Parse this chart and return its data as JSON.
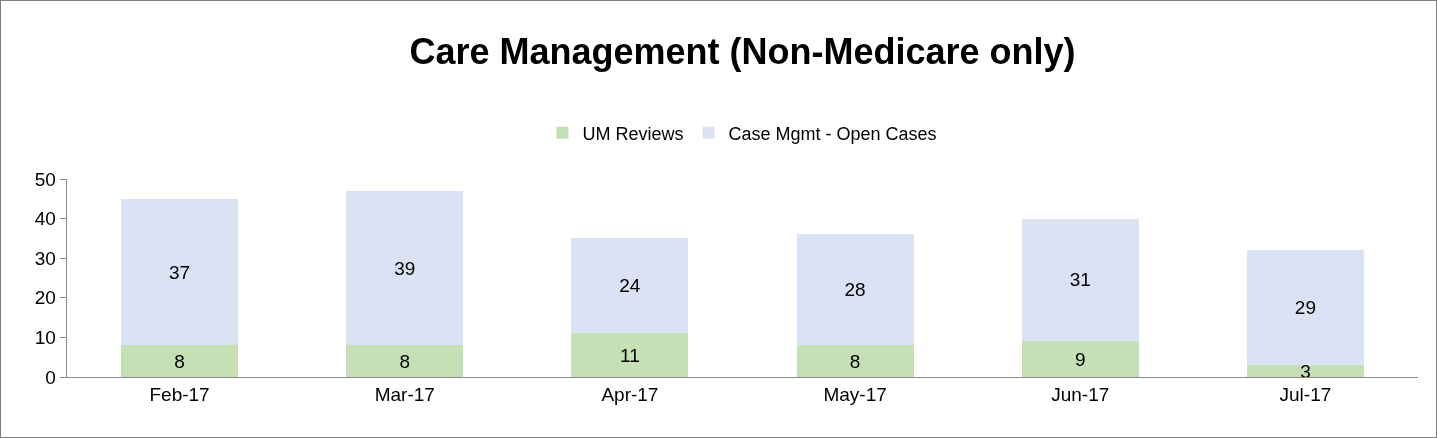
{
  "chart_data": {
    "type": "bar",
    "title": "Care Management (Non-Medicare only)",
    "categories": [
      "Feb-17",
      "Mar-17",
      "Apr-17",
      "May-17",
      "Jun-17",
      "Jul-17"
    ],
    "series": [
      {
        "name": "UM Reviews",
        "color": "#c5e0b4",
        "values": [
          8,
          8,
          11,
          8,
          9,
          3
        ]
      },
      {
        "name": "Case Mgmt - Open Cases",
        "color": "#dae3f3",
        "values": [
          37,
          39,
          24,
          28,
          31,
          29
        ]
      }
    ],
    "stacked": true,
    "ylim": [
      0,
      50
    ],
    "yticks": [
      0,
      10,
      20,
      30,
      40,
      50
    ],
    "legend": "top",
    "data_labels": true
  }
}
